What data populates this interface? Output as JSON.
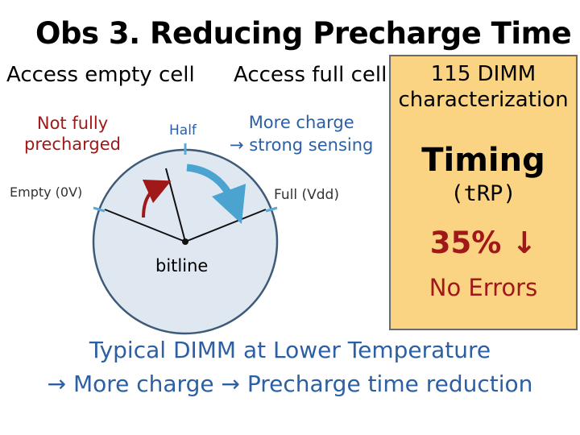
{
  "title": "Obs 3. Reducing Precharge Time",
  "left_heading": "Access empty cell",
  "mid_heading": "Access full cell",
  "not_fully": [
    "Not fully",
    "precharged"
  ],
  "more_charge": [
    "More charge",
    "→ strong sensing"
  ],
  "half_label": "Half",
  "empty_label": "Empty (0V)",
  "full_label": "Full (Vdd)",
  "bitline_label": "bitline",
  "panel": {
    "heading": "115 DIMM characterization",
    "timing": "Timing",
    "trp": "(tRP)",
    "reduction": "35% ↓",
    "no_errors": "No Errors"
  },
  "bottom": {
    "line1": "Typical DIMM at Lower Temperature",
    "line2": "→ More charge → Precharge time reduction"
  },
  "colors": {
    "red": "#a01818",
    "blue": "#2c5fa3",
    "dial_fill": "#dfe8f1",
    "arrow_blue": "#4ba3d0",
    "panel_fill": "#fbd483",
    "tick": "#5aaad8"
  }
}
